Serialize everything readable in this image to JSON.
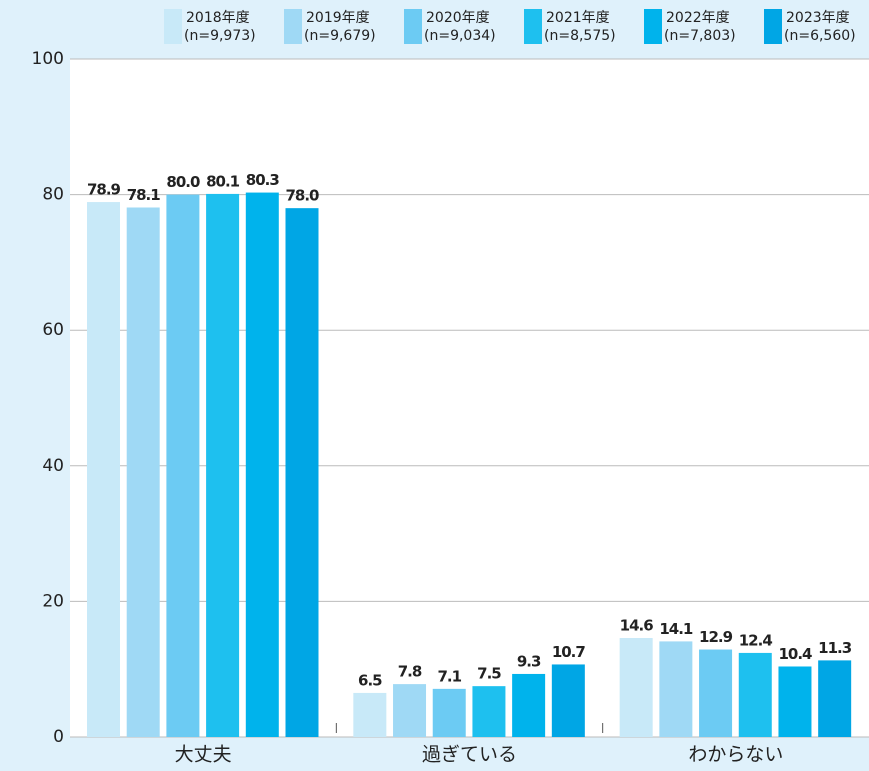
{
  "chart_data": {
    "type": "bar",
    "categories": [
      "大丈夫",
      "過ぎている",
      "わからない"
    ],
    "series": [
      {
        "name": "2018年度",
        "sample": "(n=9,973)",
        "color": "#c8e9f8",
        "values": [
          78.9,
          6.5,
          14.6
        ],
        "value_labels": [
          "78.9",
          "6.5",
          "14.6"
        ]
      },
      {
        "name": "2019年度",
        "sample": "(n=9,679)",
        "color": "#9fd9f5",
        "values": [
          78.1,
          7.8,
          14.1
        ],
        "value_labels": [
          "78.1",
          "7.8",
          "14.1"
        ]
      },
      {
        "name": "2020年度",
        "sample": "(n=9,034)",
        "color": "#6ccbf3",
        "values": [
          80.0,
          7.1,
          12.9
        ],
        "value_labels": [
          "80.0",
          "7.1",
          "12.9"
        ]
      },
      {
        "name": "2021年度",
        "sample": "(n=8,575)",
        "color": "#1ec0ef",
        "values": [
          80.1,
          7.5,
          12.4
        ],
        "value_labels": [
          "80.1",
          "7.5",
          "12.4"
        ]
      },
      {
        "name": "2022年度",
        "sample": "(n=7,803)",
        "color": "#00b3ec",
        "values": [
          80.3,
          9.3,
          10.4
        ],
        "value_labels": [
          "80.3",
          "9.3",
          "10.4"
        ]
      },
      {
        "name": "2023年度",
        "sample": "(n=6,560)",
        "color": "#00a6e5",
        "values": [
          78.0,
          10.7,
          11.3
        ],
        "value_labels": [
          "78.0",
          "10.7",
          "11.3"
        ]
      }
    ],
    "ylim": [
      0,
      100
    ],
    "yticks": [
      0,
      20,
      40,
      60,
      80,
      100
    ],
    "grid": true
  }
}
